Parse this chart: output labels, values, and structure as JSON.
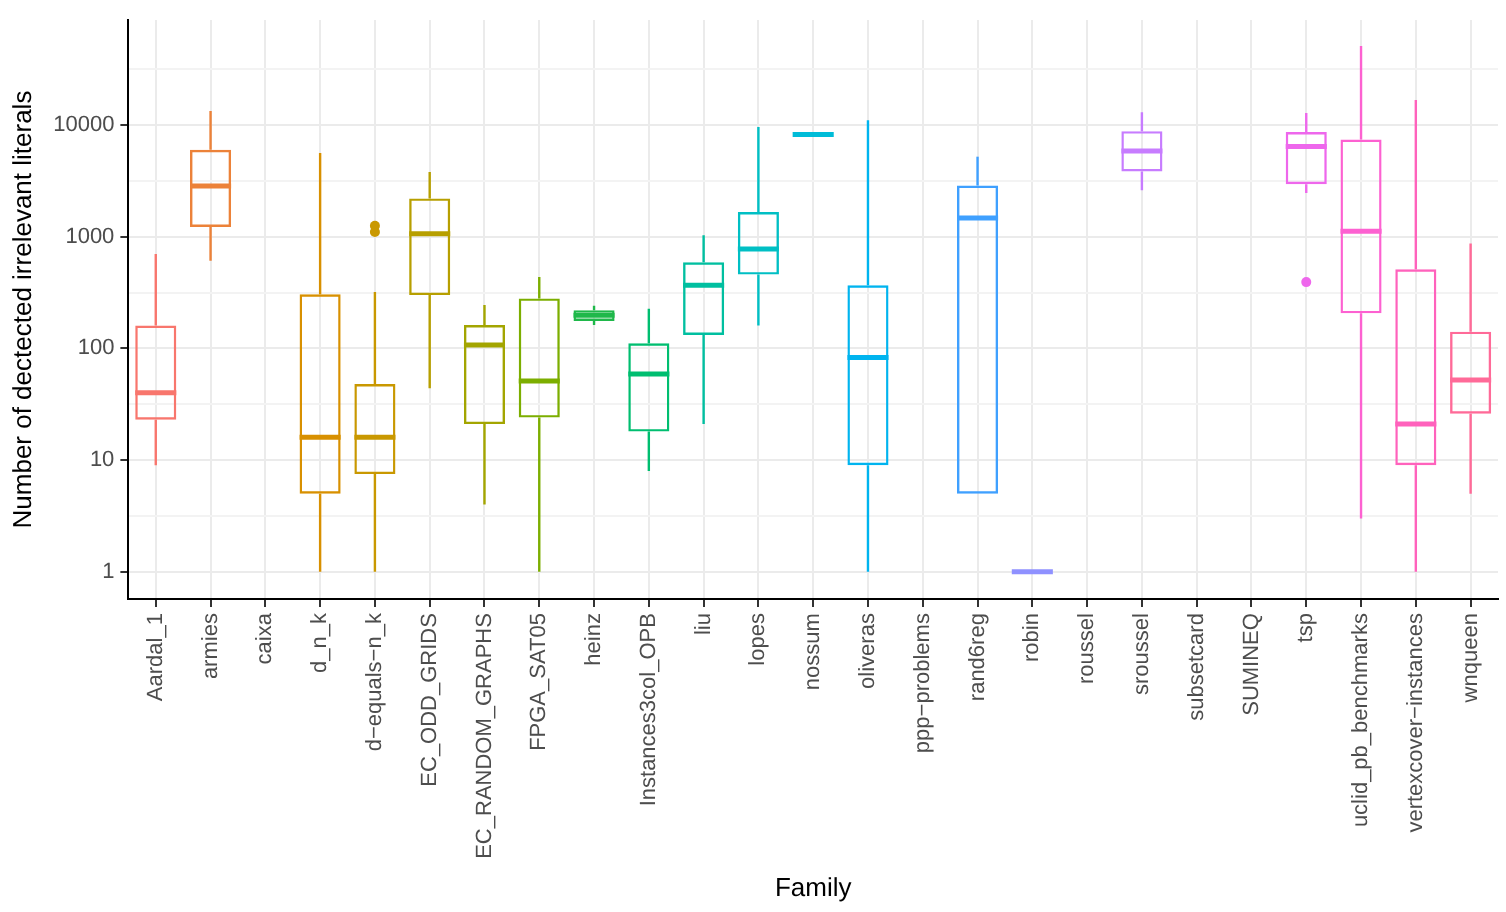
{
  "chart_data": {
    "type": "box",
    "xlabel": "Family",
    "ylabel": "Number of dectected irrelevant literals",
    "log": true,
    "grid": true,
    "legend": false,
    "categories": [
      "Aardal_1",
      "armies",
      "caixa",
      "d_n_k",
      "d−equals−n_k",
      "EC_ODD_GRIDS",
      "EC_RANDOM_GRAPHS",
      "FPGA_SAT05",
      "heinz",
      "Instances3col_OPB",
      "liu",
      "lopes",
      "nossum",
      "oliveras",
      "ppp−problems",
      "rand6reg",
      "robin",
      "roussel",
      "sroussel",
      "subsetcard",
      "SUMINEQ",
      "tsp",
      "uclid_pb_benchmarks",
      "vertexcover−instances",
      "wnqueen"
    ],
    "colors": [
      "#f8766d",
      "#ec8239",
      "#e08b00",
      "#d89000",
      "#c99800",
      "#b79f00",
      "#a3a500",
      "#7cae00",
      "#1fb84a",
      "#00be70",
      "#00bfa0",
      "#00bfc4",
      "#00bcd8",
      "#00b4ef",
      "#00a9ff",
      "#3fa0ff",
      "#8f91ff",
      "#b983ff",
      "#c77cff",
      "#dc71fa",
      "#e76bf3",
      "#ee67ec",
      "#fd61d1",
      "#ff62bc",
      "#ff6a98"
    ],
    "boxes": [
      {
        "low": 9,
        "q1": 23,
        "median": 40,
        "q3": 160,
        "high": 700
      },
      {
        "low": 610,
        "q1": 1220,
        "median": 2840,
        "q3": 6000,
        "high": 13300
      },
      null,
      {
        "low": 1,
        "q1": 5,
        "median": 16,
        "q3": 305,
        "high": 5600
      },
      {
        "low": 1,
        "q1": 7.5,
        "median": 16,
        "q3": 48,
        "high": 320,
        "outliers": [
          1100,
          1250
        ]
      },
      {
        "low": 44,
        "q1": 300,
        "median": 1060,
        "q3": 2200,
        "high": 3800
      },
      {
        "low": 4,
        "q1": 21,
        "median": 107,
        "q3": 162,
        "high": 244
      },
      {
        "low": 1,
        "q1": 24,
        "median": 51,
        "q3": 280,
        "high": 435
      },
      {
        "low": 162,
        "q1": 176,
        "median": 198,
        "q3": 220,
        "high": 241
      },
      {
        "low": 8,
        "q1": 18,
        "median": 59,
        "q3": 111,
        "high": 226
      },
      {
        "low": 21,
        "q1": 132,
        "median": 367,
        "q3": 590,
        "high": 1030
      },
      {
        "low": 160,
        "q1": 458,
        "median": 774,
        "q3": 1660,
        "high": 9600
      },
      {
        "low": 8200,
        "q1": 8200,
        "median": 8200,
        "q3": 8200,
        "high": 8200
      },
      {
        "low": 1,
        "q1": 9,
        "median": 83,
        "q3": 367,
        "high": 11000
      },
      null,
      {
        "low": 5,
        "q1": 5,
        "median": 1470,
        "q3": 2870,
        "high": 5200
      },
      {
        "low": 1,
        "q1": 1,
        "median": 1,
        "q3": 1,
        "high": 1
      },
      null,
      {
        "low": 2600,
        "q1": 3840,
        "median": 5840,
        "q3": 8800,
        "high": 13000
      },
      null,
      null,
      {
        "low": 2460,
        "q1": 2950,
        "median": 6400,
        "q3": 8650,
        "high": 12800,
        "outliers": [
          392
        ]
      },
      {
        "low": 3,
        "q1": 206,
        "median": 1120,
        "q3": 7400,
        "high": 51000
      },
      {
        "low": 1,
        "q1": 9,
        "median": 21,
        "q3": 510,
        "high": 16700
      },
      {
        "low": 5,
        "q1": 26,
        "median": 52,
        "q3": 141,
        "high": 870
      }
    ],
    "ylim": [
      0.57,
      87000
    ],
    "yticks": [
      1,
      {
        "value": 3.16,
        "label": null
      },
      10,
      {
        "value": 31.6,
        "label": null
      },
      100,
      {
        "value": 316,
        "label": null
      },
      1000,
      {
        "value": 3160,
        "label": null
      },
      10000,
      {
        "value": 31600,
        "label": null
      }
    ]
  }
}
